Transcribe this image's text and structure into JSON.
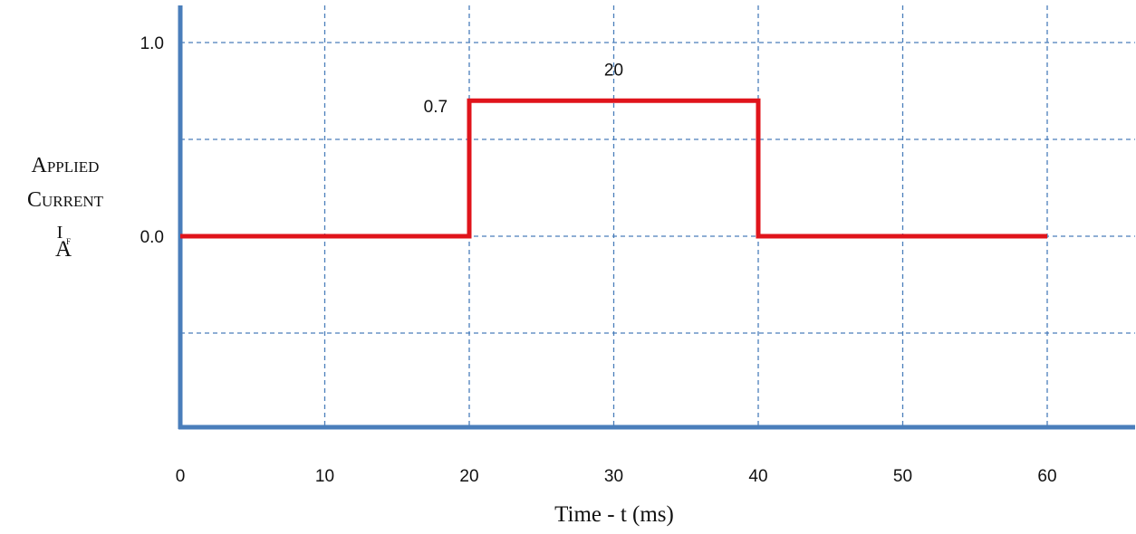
{
  "chart_data": {
    "type": "line",
    "title": "",
    "xlabel": "Time - t (ms)",
    "ylabel_lines": [
      "Applied",
      "Current"
    ],
    "ylabel_symbol": "I",
    "ylabel_subscript": "F",
    "ylabel_unit": "A",
    "xlim": [
      0,
      66
    ],
    "ylim": [
      -1,
      1.2
    ],
    "x_ticks": [
      {
        "value": 0,
        "label": "0"
      },
      {
        "value": 10,
        "label": "10"
      },
      {
        "value": 20,
        "label": "20"
      },
      {
        "value": 30,
        "label": "30"
      },
      {
        "value": 40,
        "label": "40"
      },
      {
        "value": 50,
        "label": "50"
      },
      {
        "value": 60,
        "label": "60"
      }
    ],
    "y_ticks": [
      {
        "value": 1.0,
        "label": "1.0"
      },
      {
        "value": 0.0,
        "label": "0.0"
      }
    ],
    "grid_x": [
      10,
      20,
      30,
      40,
      50,
      60
    ],
    "grid_y": [
      1.0,
      0.5,
      0.0,
      -0.5
    ],
    "grid": true,
    "series": [
      {
        "x": [
          0,
          20,
          20,
          40,
          40,
          60
        ],
        "y": [
          0,
          0,
          0.7,
          0.7,
          0,
          0
        ],
        "color": "#e0141b"
      }
    ],
    "annotations": [
      {
        "text": "0.7",
        "x": 18.5,
        "y": 0.64,
        "anchor": "end"
      },
      {
        "text": "20",
        "x": 30,
        "y": 0.83,
        "anchor": "middle"
      }
    ],
    "colors": {
      "axis": "#4a7ebb",
      "grid": "#4a7ebb",
      "series": "#e0141b"
    }
  }
}
